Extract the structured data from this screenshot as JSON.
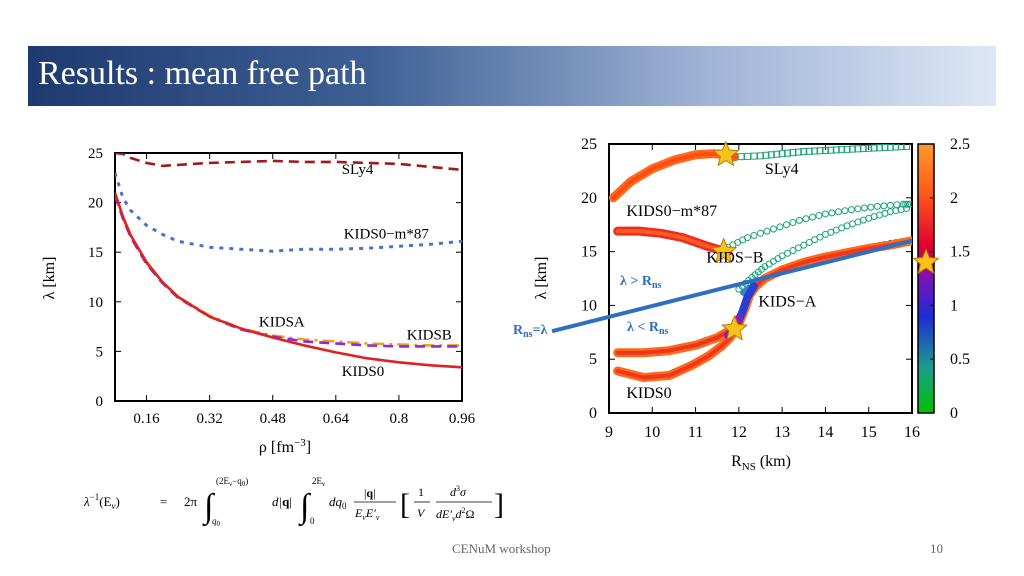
{
  "slide": {
    "title": "Results : mean free path",
    "footer": "CENuM workshop",
    "page_number": "10"
  },
  "formula": {
    "lhs": "λ",
    "lhs_sup": "−1",
    "lhs_arg": "(E",
    "lhs_arg_sub": "ν",
    "lhs_arg_close": ")",
    "eq": "=",
    "coef": "2π",
    "int1_upper": "(2E",
    "int1_upper_sub": "ν",
    "int1_upper_rest": "−q",
    "int1_upper_sub2": "0",
    "int1_upper_close": ")",
    "int1_lower": "q",
    "int1_lower_sub": "0",
    "d_q": "d|",
    "q_bold": "q",
    "d_q_close": "|",
    "int2_upper": "2E",
    "int2_upper_sub": "ν",
    "int2_lower": "0",
    "dq0": "dq",
    "dq0_sub": "0",
    "frac1_num_a": "|",
    "frac1_num_q": "q",
    "frac1_num_b": "|",
    "frac1_den": "E",
    "frac1_den_sub": "ν",
    "frac1_den_b": "E′",
    "frac1_den_sub_b": "ν",
    "frac2_num": "1",
    "frac2_den": "V",
    "frac3_num": "d",
    "frac3_num_sup": "3",
    "frac3_num_b": "σ",
    "frac3_den": "dE′",
    "frac3_den_sub": "ν",
    "frac3_den_b": "d",
    "frac3_den_sup": "2",
    "frac3_den_c": "Ω"
  },
  "chart_data": [
    {
      "type": "line",
      "xlabel": "ρ [fm",
      "xlabel_sup": "−3",
      "xlabel_close": "]",
      "ylabel": "λ [km]",
      "xlim": [
        0.08,
        0.96
      ],
      "ylim": [
        0,
        25
      ],
      "xticks": [
        "0.16",
        "0.32",
        "0.48",
        "0.64",
        "0.8",
        "0.96"
      ],
      "yticks": [
        "0",
        "5",
        "10",
        "15",
        "20",
        "25"
      ],
      "series": [
        {
          "name": "SLy4",
          "color": "#a11a1a",
          "style": "dashed",
          "x": [
            0.08,
            0.1,
            0.12,
            0.16,
            0.2,
            0.24,
            0.32,
            0.4,
            0.48,
            0.56,
            0.64,
            0.72,
            0.8,
            0.88,
            0.96
          ],
          "y": [
            25.0,
            24.9,
            24.5,
            24.0,
            23.7,
            23.8,
            24.0,
            24.1,
            24.2,
            24.1,
            24.1,
            24.0,
            23.9,
            23.6,
            23.3
          ]
        },
        {
          "name": "KIDS0−m*87",
          "color": "#4a72c9",
          "style": "dotted",
          "x": [
            0.08,
            0.1,
            0.12,
            0.16,
            0.2,
            0.24,
            0.32,
            0.4,
            0.48,
            0.56,
            0.64,
            0.72,
            0.8,
            0.88,
            0.96
          ],
          "y": [
            23.0,
            20.5,
            19.2,
            17.7,
            16.8,
            16.1,
            15.5,
            15.3,
            15.1,
            15.3,
            15.3,
            15.4,
            15.6,
            15.8,
            16.1
          ]
        },
        {
          "name": "KIDSA",
          "color": "#f0a020",
          "style": "dashdot",
          "x": [
            0.08,
            0.1,
            0.12,
            0.16,
            0.2,
            0.24,
            0.32,
            0.4,
            0.48,
            0.56,
            0.64,
            0.72,
            0.8,
            0.88,
            0.96
          ],
          "y": [
            20.8,
            18.5,
            16.6,
            13.9,
            12.0,
            10.5,
            8.6,
            7.3,
            6.6,
            6.2,
            6.0,
            5.8,
            5.7,
            5.6,
            5.6
          ]
        },
        {
          "name": "KIDSB",
          "color": "#8a2be2",
          "style": "dashed",
          "x": [
            0.08,
            0.1,
            0.12,
            0.16,
            0.2,
            0.24,
            0.32,
            0.4,
            0.48,
            0.56,
            0.64,
            0.72,
            0.8,
            0.88,
            0.96
          ],
          "y": [
            20.7,
            18.4,
            16.5,
            13.8,
            11.9,
            10.4,
            8.5,
            7.2,
            6.5,
            6.0,
            5.8,
            5.6,
            5.5,
            5.5,
            5.5
          ]
        },
        {
          "name": "KIDS0",
          "color": "#dd2222",
          "style": "solid",
          "x": [
            0.08,
            0.1,
            0.12,
            0.16,
            0.2,
            0.24,
            0.32,
            0.4,
            0.48,
            0.56,
            0.64,
            0.72,
            0.8,
            0.88,
            0.96
          ],
          "y": [
            21.0,
            18.6,
            16.7,
            14.0,
            12.0,
            10.5,
            8.5,
            7.3,
            6.4,
            5.6,
            4.9,
            4.3,
            3.9,
            3.6,
            3.4
          ]
        }
      ],
      "curve_labels": [
        {
          "text": "SLy4",
          "x": 0.655,
          "y": 22.9
        },
        {
          "text": "KIDS0−m*87",
          "x": 0.66,
          "y": 16.4
        },
        {
          "text": "KIDSA",
          "x": 0.445,
          "y": 7.5
        },
        {
          "text": "KIDSB",
          "x": 0.82,
          "y": 6.2
        },
        {
          "text": "KIDS0",
          "x": 0.655,
          "y": 2.5
        }
      ]
    },
    {
      "type": "scatter",
      "xlabel": "R",
      "xlabel_sub": "NS",
      "xlabel_rest": " (km)",
      "ylabel": "λ [km]",
      "xlim": [
        9,
        16
      ],
      "ylim": [
        0,
        25
      ],
      "xticks": [
        "9",
        "10",
        "11",
        "12",
        "13",
        "14",
        "15",
        "16"
      ],
      "yticks": [
        "0",
        "5",
        "10",
        "15",
        "20",
        "25"
      ],
      "colorbar": {
        "min": 0,
        "max": 2.5,
        "ticks": [
          "0",
          "0.5",
          "1",
          "1.5",
          "2",
          "2.5"
        ],
        "colors": [
          "#00c000",
          "#1a9e8e",
          "#1f2bd6",
          "#7b12b8",
          "#e00030",
          "#ff5a1a",
          "#ff9a2a"
        ],
        "marker_value": 1.4
      },
      "series": [
        {
          "name": "SLy4",
          "color_low": "#ff6a1a",
          "color_high": "#ff4010",
          "x": [
            9.1,
            9.5,
            10.0,
            10.5,
            11.0,
            11.4,
            11.7,
            11.9
          ],
          "y": [
            20.0,
            21.5,
            22.7,
            23.5,
            24.0,
            24.1,
            24.0,
            23.8
          ]
        },
        {
          "name": "SLy4-tail",
          "color": "#1aa37a",
          "x": [
            11.9,
            12.5,
            13.0,
            13.5,
            14.0,
            14.5,
            15.0,
            15.5,
            16.0
          ],
          "y": [
            23.8,
            23.9,
            24.1,
            24.3,
            24.4,
            24.5,
            24.6,
            24.7,
            24.8
          ]
        },
        {
          "name": "KIDS0−m*87",
          "color_low": "#ee2a22",
          "color_high": "#ff7020",
          "x": [
            9.2,
            9.7,
            10.2,
            10.7,
            11.2,
            11.6,
            11.75
          ],
          "y": [
            16.9,
            16.9,
            16.7,
            16.3,
            15.6,
            15.1,
            15.0
          ]
        },
        {
          "name": "KIDS0−m*87-tail",
          "color": "#1aa37a",
          "x": [
            11.75,
            12.2,
            12.8,
            13.4,
            14.0,
            14.6,
            15.2,
            15.8,
            16.0
          ],
          "y": [
            15.4,
            16.3,
            17.1,
            17.9,
            18.5,
            18.9,
            19.2,
            19.4,
            19.4
          ]
        },
        {
          "name": "KIDS-B",
          "color": "#1aa37a",
          "x": [
            12.0,
            12.3,
            12.6,
            13.0,
            13.5,
            14.0,
            14.5,
            15.0,
            15.5,
            16.0
          ],
          "y": [
            11.5,
            12.6,
            13.6,
            14.6,
            15.6,
            16.6,
            17.4,
            18.1,
            18.7,
            19.1
          ]
        },
        {
          "name": "KIDS-A",
          "color": "#2e8bc0",
          "x": [
            12.1,
            12.4,
            12.8,
            13.2,
            13.6,
            14.0,
            14.5,
            15.0,
            15.5,
            16.0
          ],
          "y": [
            11.2,
            12.1,
            12.8,
            13.4,
            14.0,
            14.5,
            15.0,
            15.4,
            15.8,
            16.1
          ]
        },
        {
          "name": "KIDS0",
          "color_low": "#ff6a1a",
          "color_high": "#ee2020",
          "x": [
            9.2,
            9.8,
            10.4,
            10.9,
            11.3,
            11.6,
            11.8,
            12.0,
            12.15,
            12.25,
            12.4,
            12.6,
            13.0,
            13.5,
            14.0,
            14.5,
            15.0,
            15.5,
            16.0
          ],
          "y": [
            3.9,
            3.3,
            3.5,
            4.4,
            5.3,
            6.2,
            7.0,
            8.3,
            9.8,
            11.0,
            11.8,
            12.5,
            13.3,
            14.0,
            14.5,
            14.9,
            15.3,
            15.6,
            16.0
          ]
        },
        {
          "name": "KIDS-A-lower",
          "color_low": "#ff6a1a",
          "color_high": "#dd2222",
          "x": [
            9.2,
            9.8,
            10.4,
            11.0,
            11.5,
            11.85
          ],
          "y": [
            5.6,
            5.6,
            5.8,
            6.3,
            7.0,
            7.8
          ]
        }
      ],
      "stars": [
        {
          "x": 11.7,
          "y": 24.0
        },
        {
          "x": 11.65,
          "y": 15.0
        },
        {
          "x": 11.9,
          "y": 7.8
        }
      ],
      "line": {
        "from": [
          8.7,
          7.7
        ],
        "to": [
          16.0,
          16.0
        ],
        "color": "#2e6fbf"
      },
      "curve_labels": [
        {
          "text": "SLy4",
          "x": 12.6,
          "y": 22.2
        },
        {
          "text": "KIDS0−m*87",
          "x": 9.4,
          "y": 18.3
        },
        {
          "text": "KIDS−B",
          "x": 11.25,
          "y": 14.0
        },
        {
          "text": "KIDS−A",
          "x": 12.45,
          "y": 9.9
        },
        {
          "text": "KIDS0",
          "x": 9.4,
          "y": 1.4
        }
      ],
      "annotations": {
        "gt_lambda": "λ > R",
        "gt_sub": "ns",
        "lt_lambda": "λ < R",
        "lt_sub": "ns",
        "rns_eq": "R",
        "rns_sub": "ns",
        "rns_rest": "=λ"
      }
    }
  ]
}
